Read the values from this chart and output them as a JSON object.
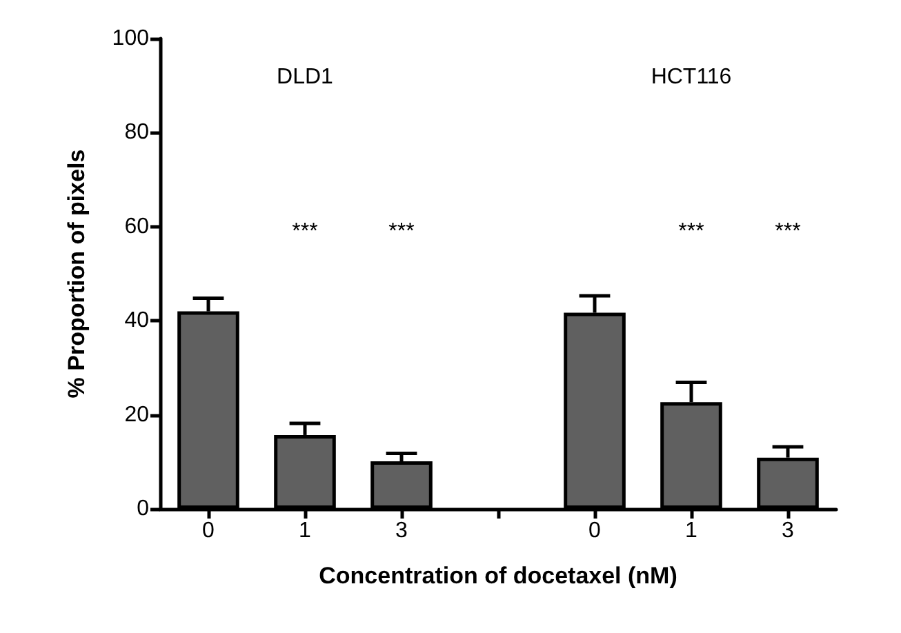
{
  "chart_data": {
    "type": "bar",
    "xlabel": "Concentration of docetaxel (nM)",
    "ylabel": "% Proportion of pixels",
    "categories": [
      "0",
      "1",
      "3",
      null,
      "0",
      "1",
      "3"
    ],
    "values": [
      42,
      15.7,
      10.1,
      null,
      41.7,
      22.7,
      10.9
    ],
    "errors": [
      2.8,
      2.5,
      1.7,
      null,
      3.6,
      4.2,
      2.3
    ],
    "color": "#606060",
    "annotations": [
      "DLD1",
      "HCT116",
      "***",
      "***",
      "***",
      "***"
    ],
    "ylim": [
      0,
      100
    ],
    "yticks": [
      0,
      20,
      40,
      60,
      80,
      100
    ],
    "grid": false
  }
}
